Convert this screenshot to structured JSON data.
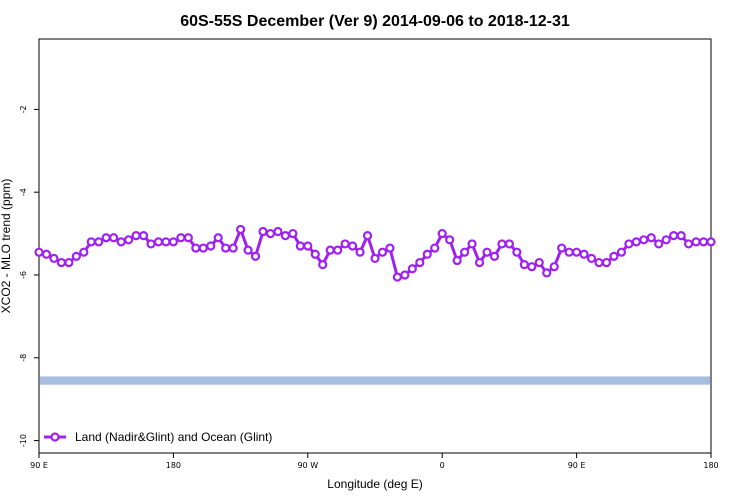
{
  "chart_data": {
    "type": "line",
    "title": "60S-55S December (Ver 9)   2014-09-06 to 2018-12-31",
    "xlabel": "Longitude (deg E)",
    "ylabel": "XCO2 - MLO trend (ppm)",
    "xlim": [
      90,
      450
    ],
    "ylim": [
      -10.3,
      -0.3
    ],
    "x_ticks": [
      {
        "value": 90,
        "label": "90 E"
      },
      {
        "value": 162,
        "label": "180"
      },
      {
        "value": 234,
        "label": "90 W"
      },
      {
        "value": 306,
        "label": "0"
      },
      {
        "value": 378,
        "label": "90 E"
      },
      {
        "value": 450,
        "label": "180"
      }
    ],
    "y_ticks": [
      {
        "value": -2,
        "label": "-2"
      },
      {
        "value": -4,
        "label": "-4"
      },
      {
        "value": -6,
        "label": "-6"
      },
      {
        "value": -8,
        "label": "-8"
      },
      {
        "value": -10,
        "label": "-10"
      }
    ],
    "grid": false,
    "legend_position": "bottom-left",
    "series": [
      {
        "name": "Land (Nadir&Glint) and Ocean (Glint)",
        "color": "#a020f0",
        "marker": "open-circle",
        "x": [
          90,
          94,
          98,
          102,
          106,
          110,
          114,
          118,
          122,
          126,
          130,
          134,
          138,
          142,
          146,
          150,
          154,
          158,
          162,
          166,
          170,
          174,
          178,
          182,
          186,
          190,
          194,
          198,
          202,
          206,
          210,
          214,
          218,
          222,
          226,
          230,
          234,
          238,
          242,
          246,
          250,
          254,
          258,
          262,
          266,
          270,
          274,
          278,
          282,
          286,
          290,
          294,
          298,
          302,
          306,
          310,
          314,
          318,
          322,
          326,
          330,
          334,
          338,
          342,
          346,
          350,
          354,
          358,
          362,
          366,
          370,
          374,
          378,
          382,
          386,
          390,
          394,
          398,
          402,
          406,
          410,
          414,
          418,
          422,
          426,
          430,
          434,
          438,
          442,
          446,
          450
        ],
        "y": [
          -5.45,
          -5.5,
          -5.6,
          -5.7,
          -5.7,
          -5.55,
          -5.45,
          -5.2,
          -5.2,
          -5.1,
          -5.1,
          -5.2,
          -5.15,
          -5.05,
          -5.05,
          -5.25,
          -5.2,
          -5.2,
          -5.2,
          -5.1,
          -5.1,
          -5.35,
          -5.35,
          -5.3,
          -5.1,
          -5.35,
          -5.35,
          -4.9,
          -5.4,
          -5.55,
          -4.95,
          -5.0,
          -4.95,
          -5.05,
          -5.0,
          -5.3,
          -5.3,
          -5.5,
          -5.75,
          -5.4,
          -5.4,
          -5.25,
          -5.3,
          -5.45,
          -5.05,
          -5.6,
          -5.45,
          -5.35,
          -6.05,
          -6.0,
          -5.85,
          -5.7,
          -5.5,
          -5.35,
          -5.0,
          -5.15,
          -5.65,
          -5.45,
          -5.25,
          -5.7,
          -5.45,
          -5.55,
          -5.25,
          -5.25,
          -5.45,
          -5.75,
          -5.8,
          -5.7,
          -5.95,
          -5.8,
          -5.35,
          -5.45,
          -5.45,
          -5.5,
          -5.6,
          -5.7,
          -5.7,
          -5.55,
          -5.45,
          -5.25,
          -5.2,
          -5.15,
          -5.1,
          -5.25,
          -5.15,
          -5.05,
          -5.05,
          -5.25,
          -5.2,
          -5.2,
          -5.2
        ]
      }
    ],
    "band": {
      "color": "#a7bde0",
      "y_low": -8.65,
      "y_high": -8.45
    }
  }
}
